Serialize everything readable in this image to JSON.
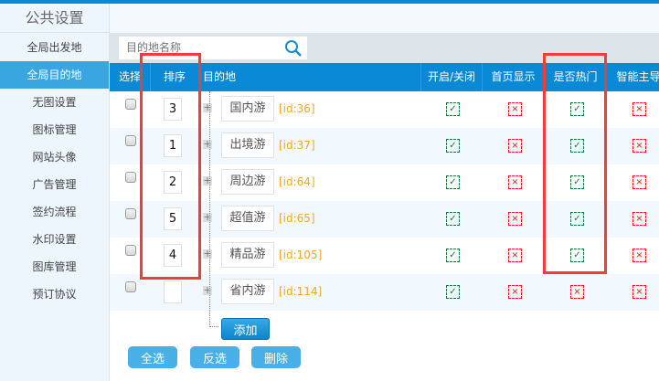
{
  "sidebar": {
    "title": "公共设置",
    "items": [
      {
        "label": "全局出发地",
        "active": false
      },
      {
        "label": "全局目的地",
        "active": true
      },
      {
        "label": "无图设置",
        "active": false
      },
      {
        "label": "图标管理",
        "active": false
      },
      {
        "label": "网站头像",
        "active": false
      },
      {
        "label": "广告管理",
        "active": false
      },
      {
        "label": "签约流程",
        "active": false
      },
      {
        "label": "水印设置",
        "active": false
      },
      {
        "label": "图库管理",
        "active": false
      },
      {
        "label": "预订协议",
        "active": false
      }
    ]
  },
  "search": {
    "placeholder": "目的地名称",
    "icon": "search-icon"
  },
  "table": {
    "headers": [
      "选择",
      "排序",
      "目的地",
      "开启/关闭",
      "首页显示",
      "是否热门",
      "智能主导"
    ],
    "rows": [
      {
        "sort": "3",
        "name": "国内游",
        "id": "[id:36]",
        "open": true,
        "home": false,
        "hot": true,
        "smart": false
      },
      {
        "sort": "1",
        "name": "出境游",
        "id": "[id:37]",
        "open": true,
        "home": false,
        "hot": true,
        "smart": false
      },
      {
        "sort": "2",
        "name": "周边游",
        "id": "[id:64]",
        "open": true,
        "home": false,
        "hot": true,
        "smart": false
      },
      {
        "sort": "5",
        "name": "超值游",
        "id": "[id:65]",
        "open": true,
        "home": false,
        "hot": true,
        "smart": false
      },
      {
        "sort": "4",
        "name": "精品游",
        "id": "[id:105]",
        "open": true,
        "home": false,
        "hot": true,
        "smart": false
      },
      {
        "sort": "",
        "name": "省内游",
        "id": "[id:114]",
        "open": true,
        "home": false,
        "hot": false,
        "smart": false
      }
    ]
  },
  "buttons": {
    "add": "添加",
    "select_all": "全选",
    "invert": "反选",
    "delete": "删除"
  },
  "colors": {
    "accent": "#0a8ad6",
    "on": "#1a7a3a",
    "off": "#e02020",
    "highlight": "#f23b3b",
    "id": "#f5a623"
  }
}
